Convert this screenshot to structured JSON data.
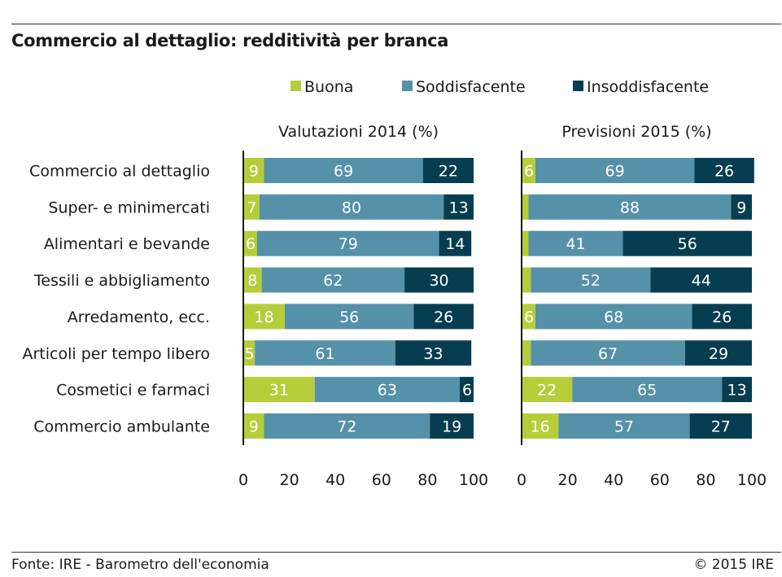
{
  "title": "Commercio al dettaglio: redditività per branca",
  "footer": {
    "source": "Fonte: IRE - Barometro dell'economia",
    "copyright": "© 2015 IRE"
  },
  "colors": {
    "Buona": "#b6cd3a",
    "Soddisfacente": "#5591a9",
    "Insoddisfacente": "#073d50"
  },
  "chart_data": {
    "type": "bar",
    "orientation": "horizontal",
    "stacked": true,
    "legend": {
      "position": "top",
      "entries": [
        "Buona",
        "Soddisfacente",
        "Insoddisfacente"
      ]
    },
    "categories": [
      "Commercio al dettaglio",
      "Super- e minimercati",
      "Alimentari e bevande",
      "Tessili e abbigliamento",
      "Arredamento, ecc.",
      "Articoli per tempo libero",
      "Cosmetici e farmaci",
      "Commercio ambulante"
    ],
    "xlim": [
      0,
      100
    ],
    "xticks": [
      0,
      20,
      40,
      60,
      80,
      100
    ],
    "grid": false,
    "panels": [
      {
        "title": "Valutazioni 2014 (%)",
        "series": [
          {
            "name": "Buona",
            "values": [
              9,
              7,
              6,
              8,
              18,
              5,
              31,
              9
            ]
          },
          {
            "name": "Soddisfacente",
            "values": [
              69,
              80,
              79,
              62,
              56,
              61,
              63,
              72
            ]
          },
          {
            "name": "Insoddisfacente",
            "values": [
              22,
              13,
              14,
              30,
              26,
              33,
              6,
              19
            ]
          }
        ],
        "labels": {
          "Buona": [
            true,
            true,
            true,
            true,
            true,
            true,
            true,
            true
          ],
          "Soddisfacente": [
            true,
            true,
            true,
            true,
            true,
            true,
            true,
            true
          ],
          "Insoddisfacente": [
            true,
            true,
            true,
            true,
            true,
            true,
            true,
            true
          ]
        }
      },
      {
        "title": "Previsioni 2015 (%)",
        "series": [
          {
            "name": "Buona",
            "values": [
              6,
              3,
              3,
              4,
              6,
              4,
              22,
              16
            ]
          },
          {
            "name": "Soddisfacente",
            "values": [
              69,
              88,
              41,
              52,
              68,
              67,
              65,
              57
            ]
          },
          {
            "name": "Insoddisfacente",
            "values": [
              26,
              9,
              56,
              44,
              26,
              29,
              13,
              27
            ]
          }
        ],
        "labels": {
          "Buona": [
            true,
            false,
            false,
            false,
            true,
            false,
            true,
            true
          ],
          "Soddisfacente": [
            true,
            true,
            true,
            true,
            true,
            true,
            true,
            true
          ],
          "Insoddisfacente": [
            true,
            true,
            true,
            true,
            true,
            true,
            true,
            true
          ]
        }
      }
    ]
  }
}
